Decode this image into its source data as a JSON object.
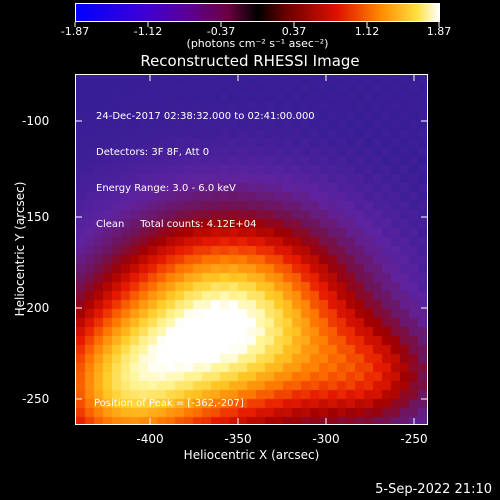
{
  "colorbar": {
    "ticks": [
      "-1.87",
      "-1.12",
      "-0.37",
      "0.37",
      "1.12",
      "1.87"
    ],
    "units": "(photons cm⁻² s⁻¹ asec⁻²)"
  },
  "title": "Reconstructed RHESSI Image",
  "info_lines": [
    "24-Dec-2017 02:38:32.000 to 02:41:00.000",
    "Detectors: 3F 8F, Att 0",
    "Energy Range: 3.0 - 6.0 keV",
    "Clean     Total counts: 4.12E+04"
  ],
  "peak_text": "Position of Peak = [-362,-207]",
  "axes": {
    "xlabel": "Heliocentric X (arcsec)",
    "ylabel": "Heliocentric Y (arcsec)",
    "xticks": [
      "-400",
      "-350",
      "-300",
      "-250"
    ],
    "yticks": [
      "-100",
      "-150",
      "-200",
      "-250"
    ]
  },
  "footer": "5-Sep-2022 21:10",
  "colors": {
    "background": "#000000",
    "foreground": "#ffffff"
  }
}
